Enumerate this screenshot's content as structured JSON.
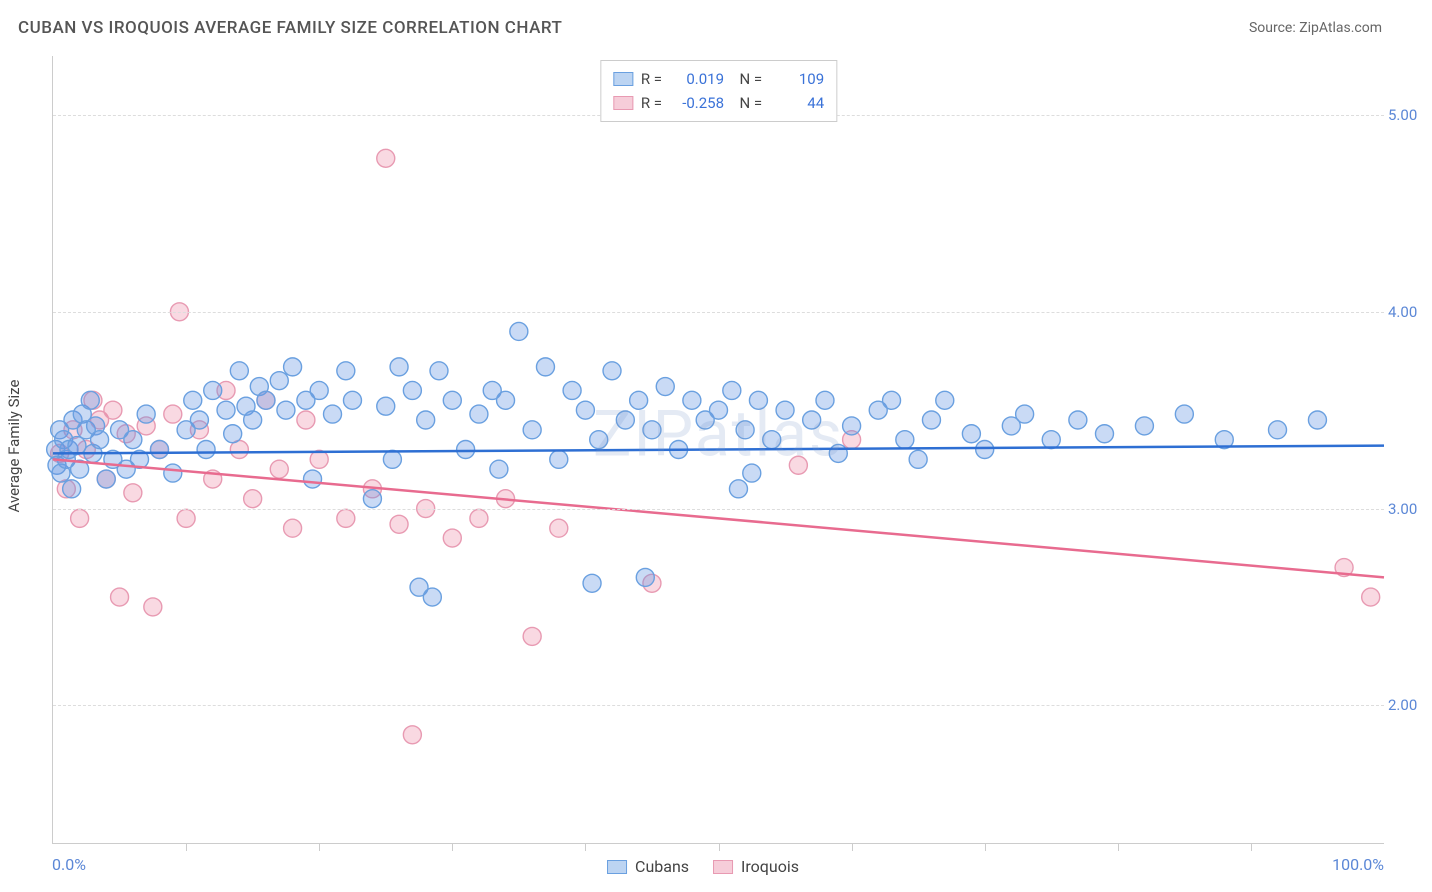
{
  "title": "CUBAN VS IROQUOIS AVERAGE FAMILY SIZE CORRELATION CHART",
  "source": "Source: ZipAtlas.com",
  "watermark": "ZIPatlas",
  "y_axis_title": "Average Family Size",
  "x_axis": {
    "min_label": "0.0%",
    "max_label": "100.0%",
    "min": 0,
    "max": 100,
    "tick_step": 10
  },
  "y_axis": {
    "min": 1.3,
    "max": 5.3,
    "ticks": [
      2.0,
      3.0,
      4.0,
      5.0
    ],
    "tick_labels": [
      "2.00",
      "3.00",
      "4.00",
      "5.00"
    ],
    "label_color": "#5b87d6"
  },
  "series": [
    {
      "name": "Cubans",
      "fill": "rgba(100, 150, 225, 0.35)",
      "stroke": "#6aa0e0",
      "line_color": "#2e6fd3",
      "swatch_fill": "#bcd4f2",
      "swatch_border": "#6aa0e0",
      "R": "0.019",
      "N": "109",
      "trend": {
        "x1": 0,
        "y1": 3.28,
        "x2": 100,
        "y2": 3.32
      },
      "points": [
        [
          0.2,
          3.3
        ],
        [
          0.3,
          3.22
        ],
        [
          0.5,
          3.4
        ],
        [
          0.6,
          3.18
        ],
        [
          0.8,
          3.35
        ],
        [
          1.0,
          3.25
        ],
        [
          1.2,
          3.3
        ],
        [
          1.4,
          3.1
        ],
        [
          1.5,
          3.45
        ],
        [
          1.8,
          3.32
        ],
        [
          2.0,
          3.2
        ],
        [
          2.2,
          3.48
        ],
        [
          2.5,
          3.4
        ],
        [
          2.8,
          3.55
        ],
        [
          3.0,
          3.28
        ],
        [
          3.2,
          3.42
        ],
        [
          3.5,
          3.35
        ],
        [
          4.0,
          3.15
        ],
        [
          4.5,
          3.25
        ],
        [
          5.0,
          3.4
        ],
        [
          5.5,
          3.2
        ],
        [
          6.0,
          3.35
        ],
        [
          6.5,
          3.25
        ],
        [
          7.0,
          3.48
        ],
        [
          8.0,
          3.3
        ],
        [
          9.0,
          3.18
        ],
        [
          10,
          3.4
        ],
        [
          10.5,
          3.55
        ],
        [
          11,
          3.45
        ],
        [
          11.5,
          3.3
        ],
        [
          12,
          3.6
        ],
        [
          13,
          3.5
        ],
        [
          13.5,
          3.38
        ],
        [
          14,
          3.7
        ],
        [
          14.5,
          3.52
        ],
        [
          15,
          3.45
        ],
        [
          15.5,
          3.62
        ],
        [
          16,
          3.55
        ],
        [
          17,
          3.65
        ],
        [
          17.5,
          3.5
        ],
        [
          18,
          3.72
        ],
        [
          19,
          3.55
        ],
        [
          19.5,
          3.15
        ],
        [
          20,
          3.6
        ],
        [
          21,
          3.48
        ],
        [
          22,
          3.7
        ],
        [
          22.5,
          3.55
        ],
        [
          24,
          3.05
        ],
        [
          25,
          3.52
        ],
        [
          25.5,
          3.25
        ],
        [
          26,
          3.72
        ],
        [
          27,
          3.6
        ],
        [
          27.5,
          2.6
        ],
        [
          28,
          3.45
        ],
        [
          28.5,
          2.55
        ],
        [
          29,
          3.7
        ],
        [
          30,
          3.55
        ],
        [
          31,
          3.3
        ],
        [
          32,
          3.48
        ],
        [
          33,
          3.6
        ],
        [
          33.5,
          3.2
        ],
        [
          34,
          3.55
        ],
        [
          35,
          3.9
        ],
        [
          36,
          3.4
        ],
        [
          37,
          3.72
        ],
        [
          38,
          3.25
        ],
        [
          39,
          3.6
        ],
        [
          40,
          3.5
        ],
        [
          40.5,
          2.62
        ],
        [
          41,
          3.35
        ],
        [
          42,
          3.7
        ],
        [
          43,
          3.45
        ],
        [
          44,
          3.55
        ],
        [
          44.5,
          2.65
        ],
        [
          45,
          3.4
        ],
        [
          46,
          3.62
        ],
        [
          47,
          3.3
        ],
        [
          48,
          3.55
        ],
        [
          49,
          3.45
        ],
        [
          50,
          3.5
        ],
        [
          51,
          3.6
        ],
        [
          51.5,
          3.1
        ],
        [
          52,
          3.4
        ],
        [
          52.5,
          3.18
        ],
        [
          53,
          3.55
        ],
        [
          54,
          3.35
        ],
        [
          55,
          3.5
        ],
        [
          57,
          3.45
        ],
        [
          58,
          3.55
        ],
        [
          59,
          3.28
        ],
        [
          60,
          3.42
        ],
        [
          62,
          3.5
        ],
        [
          63,
          3.55
        ],
        [
          64,
          3.35
        ],
        [
          65,
          3.25
        ],
        [
          66,
          3.45
        ],
        [
          67,
          3.55
        ],
        [
          69,
          3.38
        ],
        [
          70,
          3.3
        ],
        [
          72,
          3.42
        ],
        [
          73,
          3.48
        ],
        [
          75,
          3.35
        ],
        [
          77,
          3.45
        ],
        [
          79,
          3.38
        ],
        [
          82,
          3.42
        ],
        [
          85,
          3.48
        ],
        [
          88,
          3.35
        ],
        [
          92,
          3.4
        ],
        [
          95,
          3.45
        ]
      ]
    },
    {
      "name": "Iroquois",
      "fill": "rgba(235, 130, 160, 0.30)",
      "stroke": "#e89ab2",
      "line_color": "#e86b8f",
      "swatch_fill": "#f6cdd9",
      "swatch_border": "#e89ab2",
      "R": "-0.258",
      "N": "44",
      "trend": {
        "x1": 0,
        "y1": 3.25,
        "x2": 100,
        "y2": 2.65
      },
      "points": [
        [
          0.5,
          3.28
        ],
        [
          1.0,
          3.1
        ],
        [
          1.5,
          3.4
        ],
        [
          2.0,
          2.95
        ],
        [
          2.5,
          3.3
        ],
        [
          3.0,
          3.55
        ],
        [
          3.5,
          3.45
        ],
        [
          4.0,
          3.15
        ],
        [
          4.5,
          3.5
        ],
        [
          5.0,
          2.55
        ],
        [
          5.5,
          3.38
        ],
        [
          6.0,
          3.08
        ],
        [
          7.0,
          3.42
        ],
        [
          7.5,
          2.5
        ],
        [
          8.0,
          3.3
        ],
        [
          9.0,
          3.48
        ],
        [
          9.5,
          4.0
        ],
        [
          10,
          2.95
        ],
        [
          11,
          3.4
        ],
        [
          12,
          3.15
        ],
        [
          13,
          3.6
        ],
        [
          14,
          3.3
        ],
        [
          15,
          3.05
        ],
        [
          16,
          3.55
        ],
        [
          17,
          3.2
        ],
        [
          18,
          2.9
        ],
        [
          19,
          3.45
        ],
        [
          20,
          3.25
        ],
        [
          22,
          2.95
        ],
        [
          24,
          3.1
        ],
        [
          25,
          4.78
        ],
        [
          26,
          2.92
        ],
        [
          28,
          3.0
        ],
        [
          30,
          2.85
        ],
        [
          32,
          2.95
        ],
        [
          34,
          3.05
        ],
        [
          36,
          2.35
        ],
        [
          38,
          2.9
        ],
        [
          27,
          1.85
        ],
        [
          45,
          2.62
        ],
        [
          56,
          3.22
        ],
        [
          60,
          3.35
        ],
        [
          97,
          2.7
        ],
        [
          99,
          2.55
        ]
      ]
    }
  ],
  "marker_radius": 9,
  "marker_stroke_width": 1.4,
  "trend_line_width": 2.5,
  "chart_bg": "#ffffff",
  "grid_color": "#dddddd"
}
